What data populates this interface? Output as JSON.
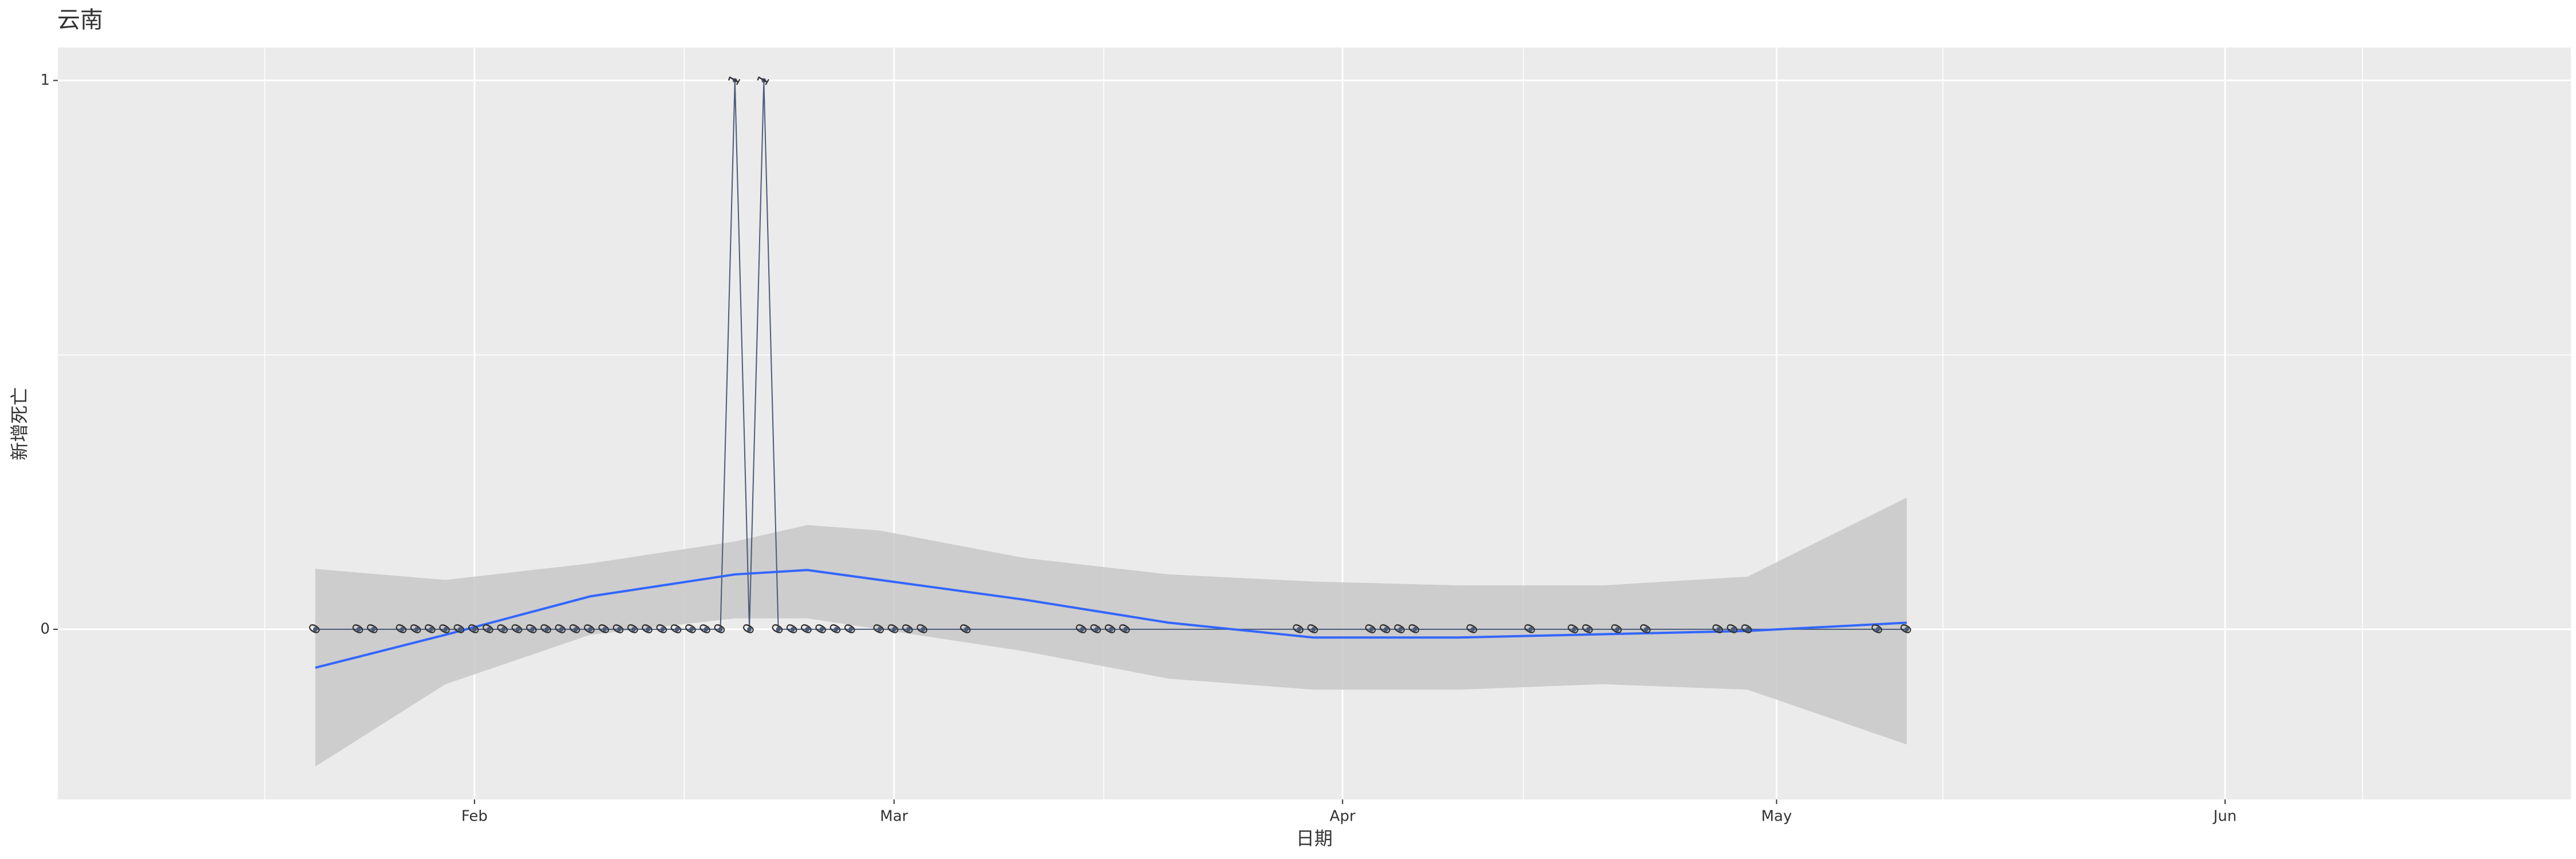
{
  "chart_data": {
    "type": "line",
    "title": "云南",
    "xlabel": "日期",
    "ylabel": "新增死亡",
    "x": [
      21,
      24,
      25,
      27,
      28,
      29,
      30,
      31,
      32,
      33,
      34,
      35,
      36,
      37,
      38,
      39,
      40,
      41,
      42,
      43,
      44,
      45,
      46,
      47,
      48,
      49,
      50,
      51,
      52,
      53,
      54,
      55,
      56,
      57,
      58,
      60,
      61,
      62,
      63,
      66,
      74,
      75,
      76,
      77,
      89,
      90,
      94,
      95,
      96,
      97,
      101,
      105,
      108,
      109,
      111,
      113,
      118,
      119,
      120,
      129,
      131
    ],
    "series": [
      {
        "color": "#4a5a78",
        "values": [
          0,
          0,
          0,
          0,
          0,
          0,
          0,
          0,
          0,
          0,
          0,
          0,
          0,
          0,
          0,
          0,
          0,
          0,
          0,
          0,
          0,
          0,
          0,
          0,
          0,
          0,
          1,
          0,
          1,
          0,
          0,
          0,
          0,
          0,
          0,
          0,
          0,
          0,
          0,
          0,
          0,
          0,
          0,
          0,
          0,
          0,
          0,
          0,
          0,
          0,
          0,
          0,
          0,
          0,
          0,
          0,
          0,
          0,
          0,
          0,
          0
        ]
      }
    ],
    "smooth": {
      "color": "#3366ff",
      "band_color": "#c8c8c8",
      "x": [
        21,
        30,
        40,
        50,
        55,
        60,
        70,
        80,
        90,
        100,
        110,
        120,
        131
      ],
      "values": [
        -0.07,
        -0.01,
        0.06,
        0.1,
        0.108,
        0.09,
        0.054,
        0.012,
        -0.015,
        -0.015,
        -0.009,
        -0.003,
        0.012
      ],
      "upper": [
        0.11,
        0.09,
        0.12,
        0.16,
        0.19,
        0.18,
        0.13,
        0.1,
        0.087,
        0.08,
        0.08,
        0.096,
        0.24
      ],
      "lower": [
        -0.25,
        -0.1,
        -0.01,
        0.02,
        0.02,
        0,
        -0.04,
        -0.09,
        -0.11,
        -0.11,
        -0.1,
        -0.11,
        -0.21
      ]
    },
    "xlim": [
      3.2,
      176.9
    ],
    "xticks": [
      {
        "value": 32,
        "label": "Feb"
      },
      {
        "value": 61,
        "label": "Mar"
      },
      {
        "value": 92,
        "label": "Apr"
      },
      {
        "value": 122,
        "label": "May"
      },
      {
        "value": 153,
        "label": "Jun"
      }
    ],
    "ylim": [
      -0.31,
      1.06
    ],
    "yticks": [
      0,
      1
    ],
    "grid": true
  }
}
